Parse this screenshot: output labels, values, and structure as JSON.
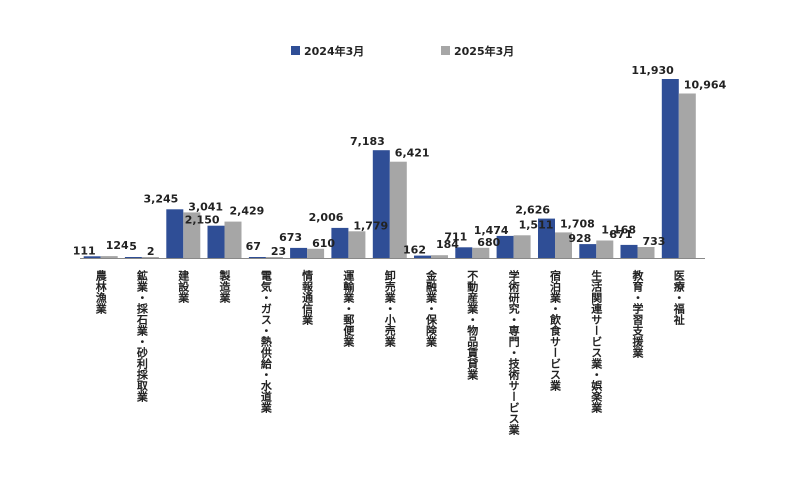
{
  "chart_data": {
    "type": "bar",
    "title": "",
    "xlabel": "",
    "ylabel": "",
    "ylim": [
      0,
      12500
    ],
    "grid": false,
    "legend_position": "top",
    "categories": [
      "農林漁業",
      "鉱業・採石業・砂利採取業",
      "建設業",
      "製造業",
      "電気・ガス・熱供給・水道業",
      "情報通信業",
      "運輸業・郵便業",
      "卸売業・小売業",
      "金融業・保険業",
      "不動産業・物品賃貸業",
      "学術研究・専門・技術サービス業",
      "宿泊業・飲食サービス業",
      "生活関連サービス業・娯楽業",
      "教育・学習支援業",
      "医療・福祉"
    ],
    "series": [
      {
        "name": "2024年3月",
        "color": "#2f4e96",
        "values": [
          111,
          5,
          3245,
          2150,
          67,
          673,
          2006,
          7183,
          162,
          711,
          1474,
          2626,
          928,
          871,
          11930
        ],
        "labels": [
          "111",
          "5",
          "3,245",
          "2,150",
          "67",
          "673",
          "2,006",
          "7,183",
          "162",
          "711",
          "1,474",
          "2,626",
          "928",
          "871",
          "11,930"
        ]
      },
      {
        "name": "2025年3月",
        "color": "#a6a6a6",
        "values": [
          124,
          2,
          3041,
          2429,
          23,
          610,
          1779,
          6421,
          184,
          680,
          1511,
          1708,
          1168,
          733,
          10964
        ],
        "labels": [
          "124",
          "2",
          "3,041",
          "2,429",
          "23",
          "610",
          "1,779",
          "6,421",
          "184",
          "680",
          "1,511",
          "1,708",
          "1,168",
          "733",
          "10,964"
        ]
      }
    ]
  }
}
